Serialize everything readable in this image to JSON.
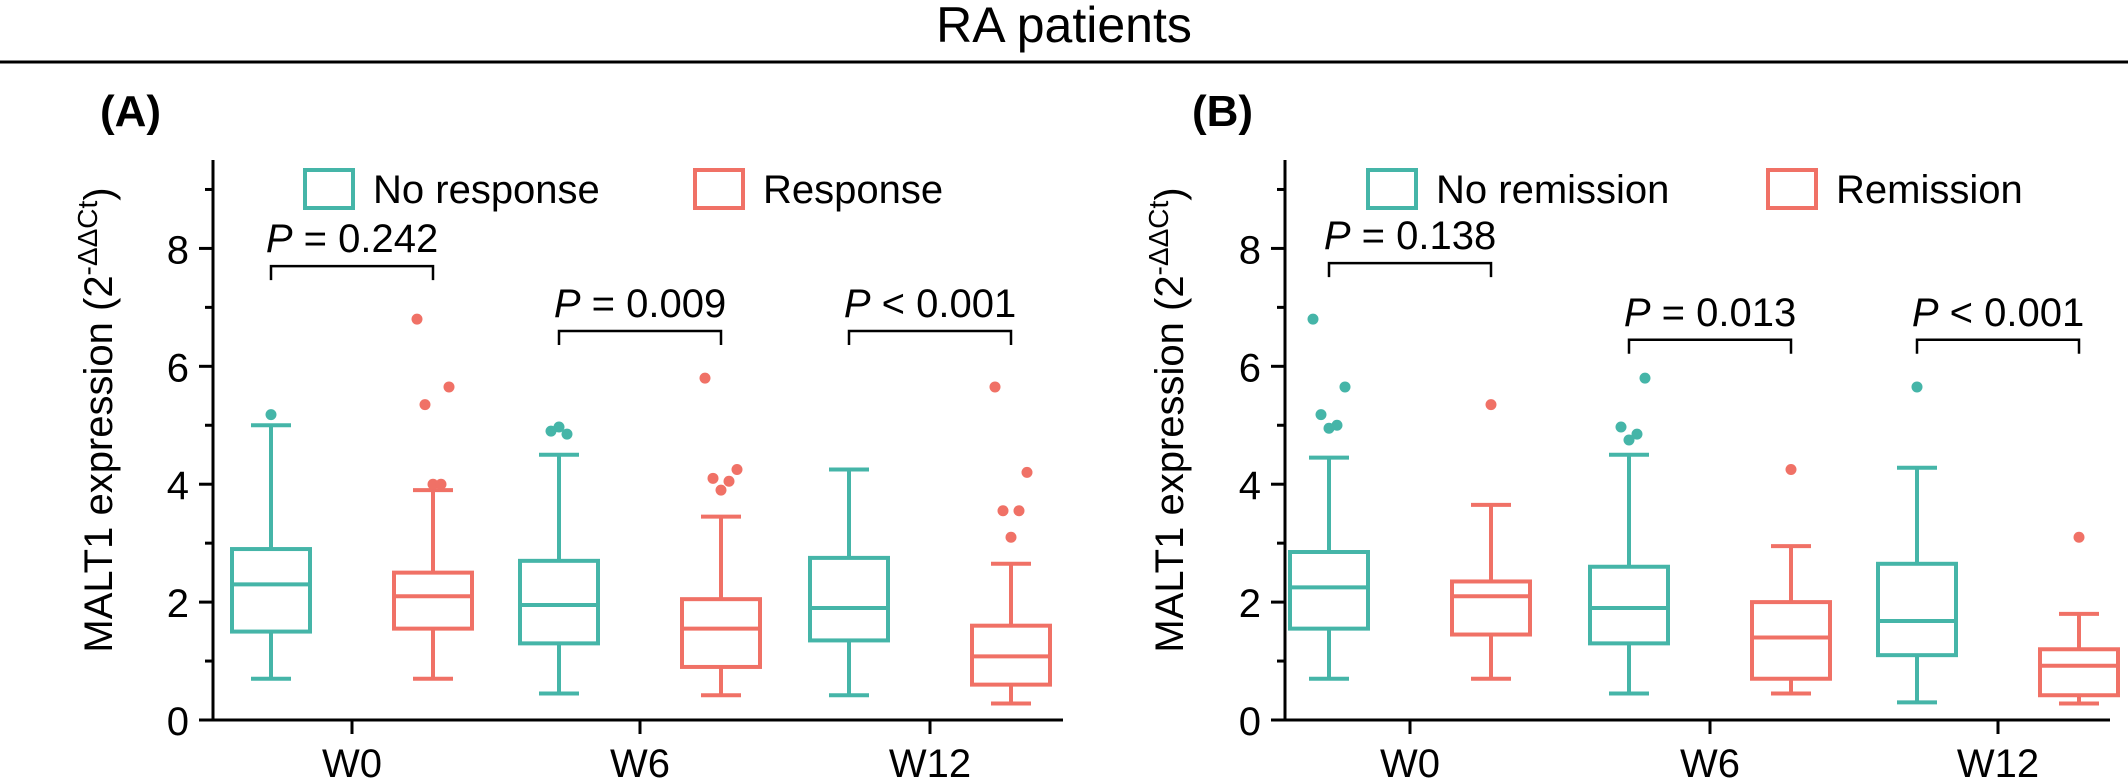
{
  "figure": {
    "title": "RA patients"
  },
  "chart_data": [
    {
      "type": "box",
      "panel_label": "(A)",
      "ylabel": "MALT1 expression (2",
      "ylabel_sup": "-ΔΔCt",
      "ylabel_close": ")",
      "ylim": [
        0,
        9.5
      ],
      "yticks": [
        "0",
        "2",
        "4",
        "6",
        "8"
      ],
      "categories": [
        "W0",
        "W6",
        "W12"
      ],
      "legend_position": "top",
      "series": [
        {
          "name": "No response",
          "color": "#45B5A8",
          "boxes": [
            {
              "min": 0.7,
              "q1": 1.5,
              "median": 2.3,
              "q3": 2.9,
              "max": 5.0,
              "outliers": [
                5.18
              ]
            },
            {
              "min": 0.45,
              "q1": 1.3,
              "median": 1.95,
              "q3": 2.7,
              "max": 4.5,
              "outliers": [
                4.97,
                4.85,
                4.9
              ]
            },
            {
              "min": 0.42,
              "q1": 1.35,
              "median": 1.9,
              "q3": 2.75,
              "max": 4.25,
              "outliers": []
            }
          ]
        },
        {
          "name": "Response",
          "color": "#F07166",
          "boxes": [
            {
              "min": 0.7,
              "q1": 1.55,
              "median": 2.1,
              "q3": 2.5,
              "max": 3.9,
              "outliers": [
                4.0,
                4.0,
                5.35,
                5.65,
                6.8
              ]
            },
            {
              "min": 0.42,
              "q1": 0.9,
              "median": 1.55,
              "q3": 2.05,
              "max": 3.45,
              "outliers": [
                3.9,
                4.05,
                4.1,
                4.25,
                5.8
              ]
            },
            {
              "min": 0.28,
              "q1": 0.6,
              "median": 1.08,
              "q3": 1.6,
              "max": 2.65,
              "outliers": [
                3.1,
                3.55,
                3.55,
                4.2,
                5.65
              ]
            }
          ]
        }
      ],
      "annotations": [
        {
          "category": "W0",
          "p_symbol": "P",
          "p_text": " = 0.242",
          "y": 7.7
        },
        {
          "category": "W6",
          "p_symbol": "P",
          "p_text": " = 0.009",
          "y": 6.6
        },
        {
          "category": "W12",
          "p_symbol": "P",
          "p_text": " < 0.001",
          "y": 6.6
        }
      ]
    },
    {
      "type": "box",
      "panel_label": "(B)",
      "ylabel": "MALT1 expression (2",
      "ylabel_sup": "-ΔΔCt",
      "ylabel_close": ")",
      "ylim": [
        0,
        9.5
      ],
      "yticks": [
        "0",
        "2",
        "4",
        "6",
        "8"
      ],
      "categories": [
        "W0",
        "W6",
        "W12"
      ],
      "legend_position": "top",
      "series": [
        {
          "name": "No remission",
          "color": "#45B5A8",
          "boxes": [
            {
              "min": 0.7,
              "q1": 1.55,
              "median": 2.25,
              "q3": 2.85,
              "max": 4.45,
              "outliers": [
                4.95,
                5.0,
                5.18,
                5.65,
                6.8
              ]
            },
            {
              "min": 0.45,
              "q1": 1.3,
              "median": 1.9,
              "q3": 2.6,
              "max": 4.5,
              "outliers": [
                4.75,
                4.85,
                4.97,
                5.8
              ]
            },
            {
              "min": 0.3,
              "q1": 1.1,
              "median": 1.68,
              "q3": 2.65,
              "max": 4.28,
              "outliers": [
                5.65
              ]
            }
          ]
        },
        {
          "name": "Remission",
          "color": "#F07166",
          "boxes": [
            {
              "min": 0.7,
              "q1": 1.45,
              "median": 2.1,
              "q3": 2.35,
              "max": 3.65,
              "outliers": [
                5.35
              ]
            },
            {
              "min": 0.45,
              "q1": 0.7,
              "median": 1.4,
              "q3": 2.0,
              "max": 2.95,
              "outliers": [
                4.25
              ]
            },
            {
              "min": 0.28,
              "q1": 0.42,
              "median": 0.92,
              "q3": 1.2,
              "max": 1.8,
              "outliers": [
                3.1
              ]
            }
          ]
        }
      ],
      "annotations": [
        {
          "category": "W0",
          "p_symbol": "P",
          "p_text": " = 0.138",
          "y": 7.75
        },
        {
          "category": "W6",
          "p_symbol": "P",
          "p_text": " = 0.013",
          "y": 6.45
        },
        {
          "category": "W12",
          "p_symbol": "P",
          "p_text": " < 0.001",
          "y": 6.45
        }
      ]
    }
  ]
}
